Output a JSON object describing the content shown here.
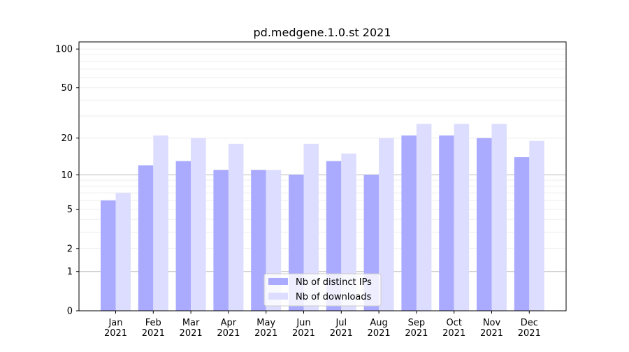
{
  "chart_data": {
    "type": "bar",
    "title": "pd.medgene.1.0.st 2021",
    "xlabel": "",
    "ylabel": "",
    "yscale": "symlog (log10(1+y))",
    "ylim": [
      0,
      113
    ],
    "grid": true,
    "legend_placement": "lower center",
    "categories": [
      "Jan\n2021",
      "Feb\n2021",
      "Mar\n2021",
      "Apr\n2021",
      "May\n2021",
      "Jun\n2021",
      "Jul\n2021",
      "Aug\n2021",
      "Sep\n2021",
      "Oct\n2021",
      "Nov\n2021",
      "Dec\n2021"
    ],
    "yticks": [
      0,
      1,
      2,
      5,
      10,
      20,
      50,
      100
    ],
    "series": [
      {
        "name": "Nb of distinct IPs",
        "color": "#aaaaff",
        "values": [
          6,
          12,
          13,
          11,
          11,
          10,
          13,
          10,
          21,
          21,
          20,
          14
        ]
      },
      {
        "name": "Nb of downloads",
        "color": "#ddddff",
        "values": [
          7,
          21,
          20,
          18,
          11,
          18,
          15,
          20,
          26,
          26,
          26,
          19
        ]
      }
    ]
  }
}
